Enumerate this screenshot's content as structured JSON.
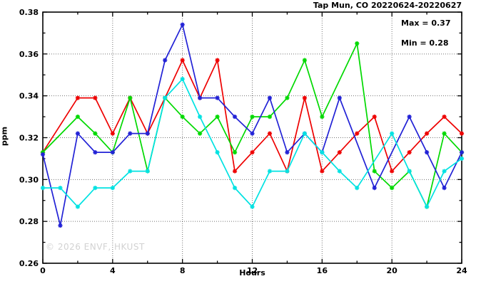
{
  "chart_data": {
    "type": "line",
    "title": "Tap Mun, CO 20220624-20220627",
    "xlabel": "Hours",
    "ylabel": "ppm",
    "xlim": [
      0,
      24
    ],
    "ylim": [
      0.26,
      0.38
    ],
    "grid": true,
    "legend_position": "none",
    "annotation": {
      "line1": "Max = 0.37",
      "line2": "Min = 0.28"
    },
    "watermark": "© 2026 ENVF, HKUST",
    "x_ticks": {
      "values": [
        0,
        4,
        8,
        12,
        16,
        20,
        24
      ],
      "labels": [
        "0",
        "4",
        "8",
        "12",
        "16",
        "20",
        "24"
      ]
    },
    "x_minor_tick_step": 2,
    "y_ticks": {
      "values": [
        0.26,
        0.28,
        0.3,
        0.32,
        0.34,
        0.36,
        0.38
      ],
      "labels": [
        "0.26",
        "0.28",
        "0.30",
        "0.32",
        "0.34",
        "0.36",
        "0.38"
      ]
    },
    "y_minor_tick_step": 0.01,
    "x": [
      0,
      1,
      2,
      3,
      4,
      5,
      6,
      7,
      8,
      9,
      10,
      11,
      12,
      13,
      14,
      15,
      16,
      17,
      18,
      19,
      20,
      21,
      22,
      23,
      24
    ],
    "series": [
      {
        "name": "red",
        "color": "#ee0000",
        "values": [
          0.313,
          null,
          0.339,
          0.339,
          0.322,
          0.339,
          0.322,
          0.339,
          0.357,
          0.339,
          0.357,
          0.304,
          0.313,
          0.322,
          0.304,
          0.339,
          0.304,
          0.313,
          0.322,
          0.33,
          0.304,
          0.313,
          0.322,
          0.33,
          0.322
        ]
      },
      {
        "name": "green",
        "color": "#00d900",
        "values": [
          0.313,
          null,
          0.33,
          0.322,
          0.313,
          0.339,
          0.304,
          0.339,
          0.33,
          0.322,
          0.33,
          0.313,
          0.33,
          0.33,
          0.339,
          0.357,
          0.33,
          null,
          0.365,
          0.304,
          0.296,
          0.304,
          0.287,
          0.322,
          0.313
        ]
      },
      {
        "name": "blue",
        "color": "#2222d6",
        "values": [
          0.312,
          0.278,
          0.322,
          0.313,
          0.313,
          0.322,
          0.322,
          0.357,
          0.374,
          0.339,
          0.339,
          0.33,
          0.322,
          0.339,
          0.313,
          0.322,
          0.313,
          0.339,
          null,
          0.296,
          null,
          0.33,
          0.313,
          0.296,
          0.313
        ]
      },
      {
        "name": "cyan",
        "color": "#00e2e2",
        "values": [
          0.296,
          0.296,
          0.287,
          0.296,
          0.296,
          0.304,
          0.304,
          0.339,
          0.348,
          0.33,
          0.313,
          0.296,
          0.287,
          0.304,
          0.304,
          0.322,
          0.313,
          0.304,
          0.296,
          null,
          0.322,
          0.304,
          0.287,
          0.304,
          0.31
        ]
      }
    ]
  }
}
